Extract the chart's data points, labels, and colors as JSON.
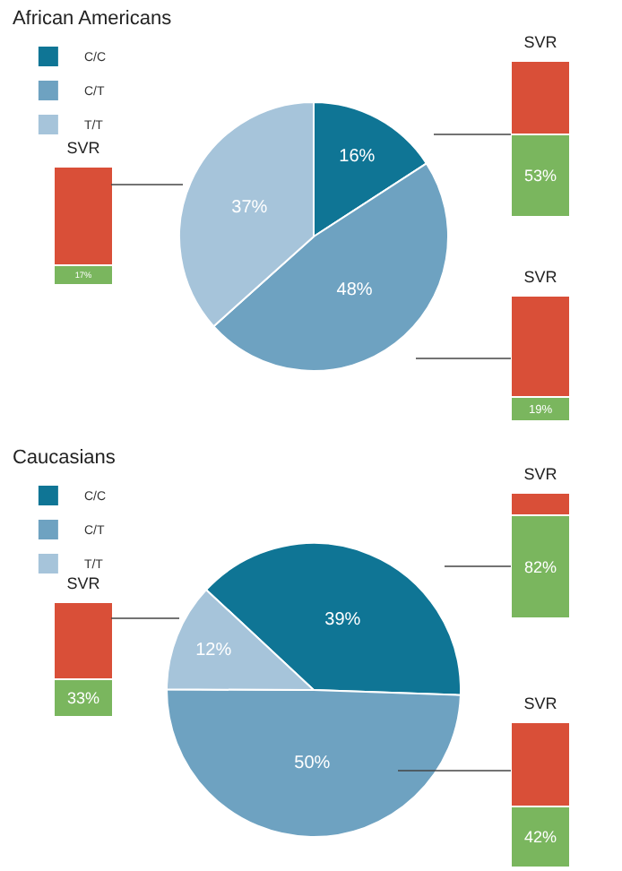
{
  "chart_data": [
    {
      "type": "pie",
      "title": "African Americans",
      "legend": "top left",
      "categories": [
        "C/C",
        "C/T",
        "T/T"
      ],
      "values": [
        16,
        48,
        37
      ],
      "value_labels": [
        "16%",
        "48%",
        "37%"
      ],
      "colors": [
        "#0f7595",
        "#6ea2c1",
        "#a6c4da"
      ]
    },
    {
      "type": "bar",
      "title": "SVR",
      "stacked": true,
      "ylim": [
        0,
        100
      ],
      "tick_labels": false,
      "categories": [
        null
      ],
      "series": [
        {
          "color": "#7ab65e",
          "values": [
            53
          ],
          "value_labels": [
            "53%"
          ]
        },
        {
          "color": "#d94f38",
          "values": [
            47
          ]
        }
      ]
    },
    {
      "type": "bar",
      "title": "SVR",
      "stacked": true,
      "ylim": [
        0,
        100
      ],
      "tick_labels": false,
      "categories": [
        null
      ],
      "series": [
        {
          "color": "#7ab65e",
          "values": [
            17
          ],
          "value_labels": [
            "17%"
          ]
        },
        {
          "color": "#d94f38",
          "values": [
            83
          ]
        }
      ]
    },
    {
      "type": "bar",
      "title": "SVR",
      "stacked": true,
      "ylim": [
        0,
        100
      ],
      "tick_labels": false,
      "categories": [
        null
      ],
      "series": [
        {
          "color": "#7ab65e",
          "values": [
            19
          ],
          "value_labels": [
            "19%"
          ]
        },
        {
          "color": "#d94f38",
          "values": [
            81
          ]
        }
      ]
    },
    {
      "type": "pie",
      "title": "Caucasians",
      "legend": "top left",
      "categories": [
        "C/C",
        "C/T",
        "T/T"
      ],
      "values": [
        39,
        50,
        12
      ],
      "value_labels": [
        "39%",
        "50%",
        "12%"
      ],
      "colors": [
        "#0f7595",
        "#6ea2c1",
        "#a6c4da"
      ]
    },
    {
      "type": "bar",
      "title": "SVR",
      "stacked": true,
      "ylim": [
        0,
        100
      ],
      "tick_labels": false,
      "categories": [
        null
      ],
      "series": [
        {
          "color": "#7ab65e",
          "values": [
            82
          ],
          "value_labels": [
            "82%"
          ]
        },
        {
          "color": "#d94f38",
          "values": [
            18
          ]
        }
      ]
    },
    {
      "type": "bar",
      "title": "SVR",
      "stacked": true,
      "ylim": [
        0,
        100
      ],
      "tick_labels": false,
      "categories": [
        null
      ],
      "series": [
        {
          "color": "#7ab65e",
          "values": [
            33
          ],
          "value_labels": [
            "33%"
          ]
        },
        {
          "color": "#d94f38",
          "values": [
            67
          ]
        }
      ]
    },
    {
      "type": "bar",
      "title": "SVR",
      "stacked": true,
      "ylim": [
        0,
        100
      ],
      "tick_labels": false,
      "categories": [
        null
      ],
      "series": [
        {
          "color": "#7ab65e",
          "values": [
            42
          ],
          "value_labels": [
            "42%"
          ]
        },
        {
          "color": "#d94f38",
          "values": [
            58
          ]
        }
      ]
    }
  ]
}
